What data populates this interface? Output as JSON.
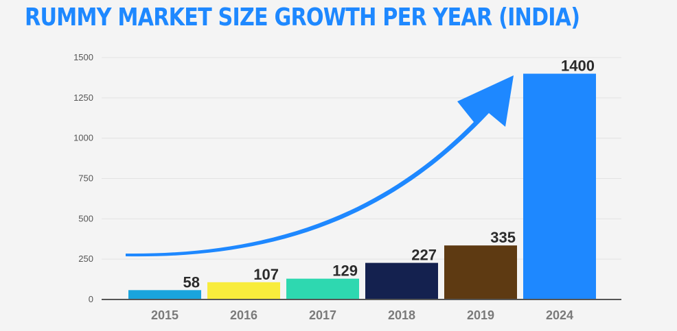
{
  "title": "RUMMY MARKET SIZE GROWTH PER YEAR (INDIA)",
  "colors": {
    "title": "#1e88ff",
    "arrow": "#1e88ff",
    "axis": "#555555",
    "grid": "#e2e2e2"
  },
  "chart_data": {
    "type": "bar",
    "title": "RUMMY MARKET SIZE GROWTH PER YEAR (INDIA)",
    "xlabel": "",
    "ylabel": "",
    "categories": [
      "2015",
      "2016",
      "2017",
      "2018",
      "2019",
      "2024"
    ],
    "values": [
      58,
      107,
      129,
      227,
      335,
      1400
    ],
    "data_labels": [
      "58",
      "107",
      "129",
      "227",
      "335",
      "1400"
    ],
    "bar_colors": [
      "#1aa4dc",
      "#f8ec3c",
      "#2ed8b0",
      "#14214f",
      "#5e3a12",
      "#1e88ff"
    ],
    "ylim": [
      0,
      1500
    ],
    "yticks": [
      0,
      250,
      500,
      750,
      1000,
      1250,
      1500
    ],
    "ytick_labels": [
      "0",
      "250",
      "500",
      "750",
      "1000",
      "1250",
      "1500"
    ],
    "grid": true,
    "legend": "none",
    "annotation": "upward-growth-arrow"
  }
}
